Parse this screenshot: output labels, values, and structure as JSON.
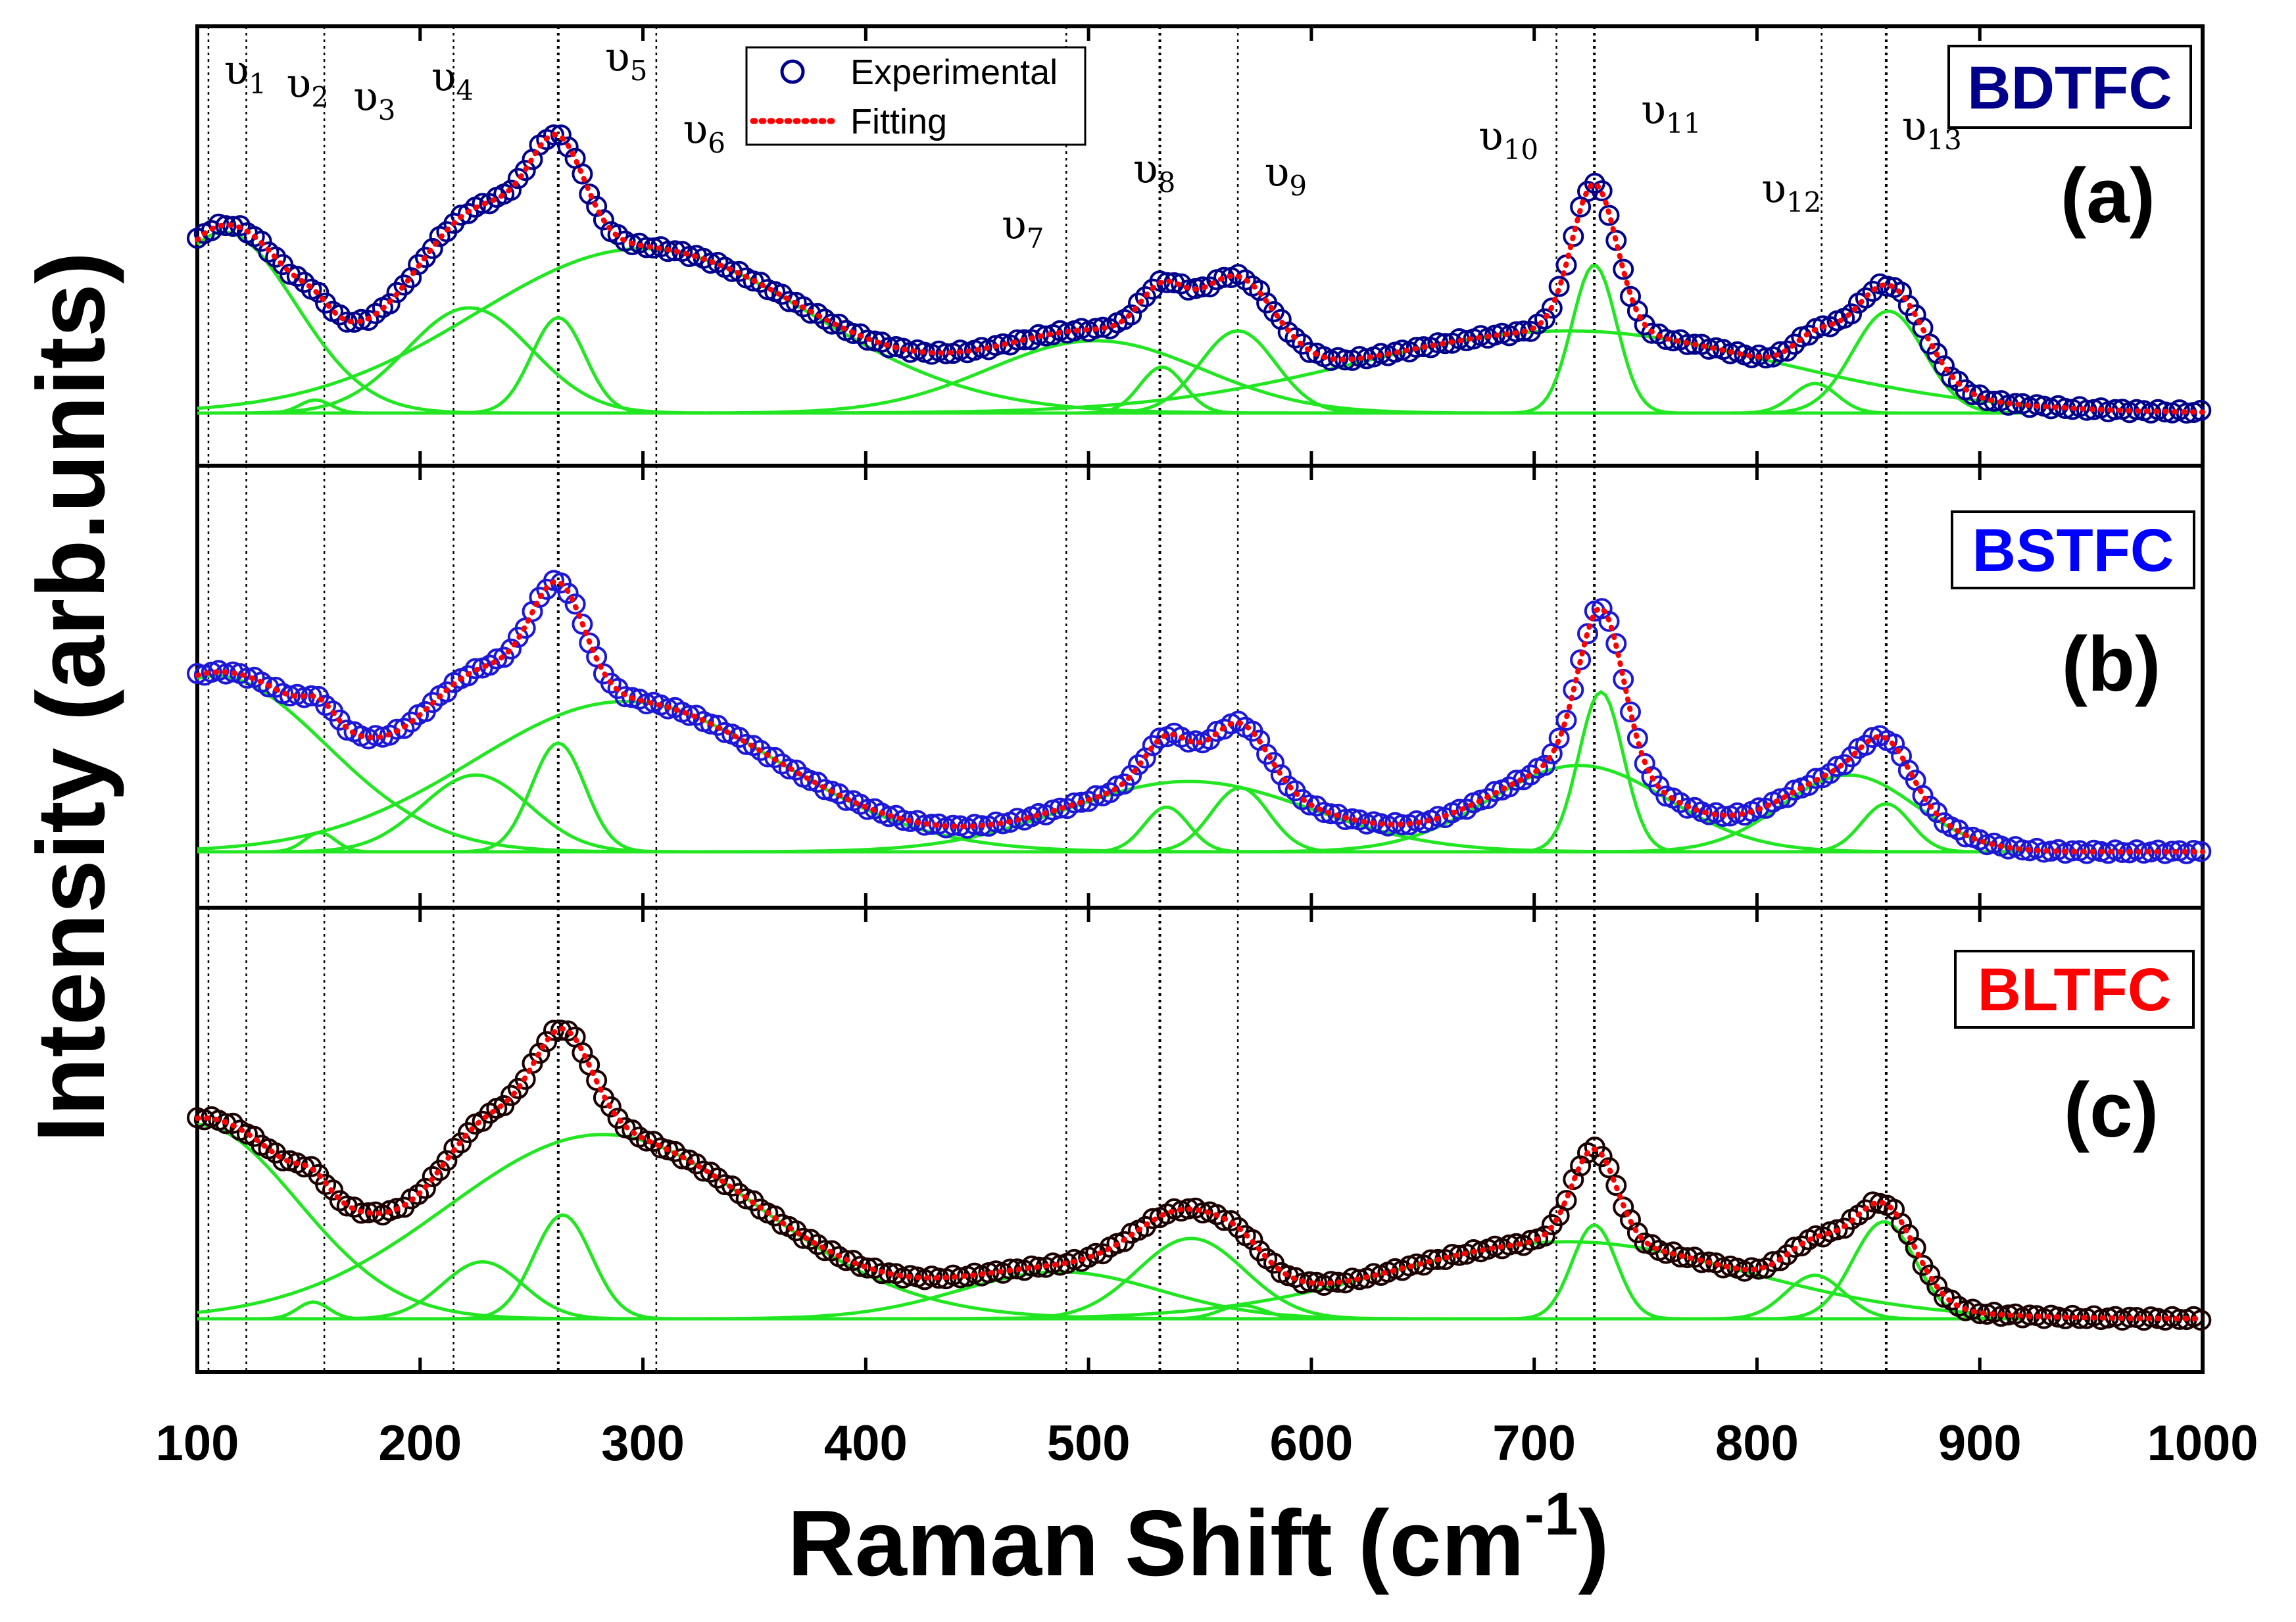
{
  "chart_data": {
    "type": "line",
    "xlabel": "Raman Shift (cm",
    "xlabel_sup": "-1",
    "xlabel_close": ")",
    "ylabel": "Intensity (arb.units)",
    "xlim": [
      100,
      1000
    ],
    "xticks": [
      "100",
      "200",
      "300",
      "400",
      "500",
      "600",
      "700",
      "800",
      "900",
      "1000"
    ],
    "legend": {
      "placement": "top-center of panel (a)",
      "entries": [
        {
          "label": "Experimental",
          "marker": "open-circle"
        },
        {
          "label": "Fitting",
          "marker": "dotted-line"
        }
      ]
    },
    "mode_lines": [
      105,
      122,
      157,
      215,
      262,
      306,
      490,
      532,
      567,
      710,
      727,
      829,
      858
    ],
    "panels": [
      {
        "sample": "BDTFC",
        "letter": "(a)",
        "sample_color": "#00008b",
        "marker_color": "#00008b",
        "ylim": [
          0,
          1.08
        ],
        "baseline_start": 0.0,
        "baseline_end": 0.0,
        "peaks": [
          {
            "center": 112,
            "amp": 0.55,
            "width": 32
          },
          {
            "center": 153,
            "amp": 0.04,
            "width": 7
          },
          {
            "center": 222,
            "amp": 0.32,
            "width": 28
          },
          {
            "center": 262,
            "amp": 0.29,
            "width": 12
          },
          {
            "center": 300,
            "amp": 0.5,
            "width": 75
          },
          {
            "center": 503,
            "amp": 0.22,
            "width": 48
          },
          {
            "center": 533,
            "amp": 0.14,
            "width": 10
          },
          {
            "center": 567,
            "amp": 0.25,
            "width": 17
          },
          {
            "center": 715,
            "amp": 0.25,
            "width": 95
          },
          {
            "center": 727,
            "amp": 0.45,
            "width": 10
          },
          {
            "center": 826,
            "amp": 0.09,
            "width": 10
          },
          {
            "center": 859,
            "amp": 0.31,
            "width": 16
          }
        ],
        "modes": [
          {
            "label": "υ",
            "sub": "1",
            "x": 112,
            "y": 1.0
          },
          {
            "label": "υ",
            "sub": "2",
            "x": 140,
            "y": 0.96
          },
          {
            "label": "υ",
            "sub": "3",
            "x": 170,
            "y": 0.92
          },
          {
            "label": "υ",
            "sub": "4",
            "x": 205,
            "y": 0.98
          },
          {
            "label": "υ",
            "sub": "5",
            "x": 283,
            "y": 1.04
          },
          {
            "label": "υ",
            "sub": "6",
            "x": 318,
            "y": 0.82
          },
          {
            "label": "υ",
            "sub": "7",
            "x": 461,
            "y": 0.53
          },
          {
            "label": "υ",
            "sub": "8",
            "x": 520,
            "y": 0.7
          },
          {
            "label": "υ",
            "sub": "9",
            "x": 579,
            "y": 0.69
          },
          {
            "label": "υ",
            "sub": "10",
            "x": 675,
            "y": 0.8
          },
          {
            "label": "υ",
            "sub": "11",
            "x": 748,
            "y": 0.88
          },
          {
            "label": "υ",
            "sub": "12",
            "x": 802,
            "y": 0.64
          },
          {
            "label": "υ",
            "sub": "13",
            "x": 865,
            "y": 0.83
          }
        ]
      },
      {
        "sample": "BSTFC",
        "letter": "(b)",
        "sample_color": "#0000ff",
        "marker_color": "#1d18d6",
        "ylim": [
          0,
          1.08
        ],
        "baseline_start": 0.0,
        "baseline_end": 0.0,
        "peaks": [
          {
            "center": 108,
            "amp": 0.55,
            "width": 50
          },
          {
            "center": 155,
            "amp": 0.06,
            "width": 7
          },
          {
            "center": 225,
            "amp": 0.24,
            "width": 24
          },
          {
            "center": 262,
            "amp": 0.34,
            "width": 12
          },
          {
            "center": 292,
            "amp": 0.47,
            "width": 68
          },
          {
            "center": 545,
            "amp": 0.22,
            "width": 55
          },
          {
            "center": 535,
            "amp": 0.14,
            "width": 10
          },
          {
            "center": 568,
            "amp": 0.2,
            "width": 13
          },
          {
            "center": 720,
            "amp": 0.27,
            "width": 40
          },
          {
            "center": 730,
            "amp": 0.5,
            "width": 10
          },
          {
            "center": 841,
            "amp": 0.24,
            "width": 30
          },
          {
            "center": 858,
            "amp": 0.15,
            "width": 11
          }
        ],
        "modes": []
      },
      {
        "sample": "BLTFC",
        "letter": "(c)",
        "sample_color": "#ff0000",
        "marker_color": "#1a0000",
        "ylim": [
          0,
          1.08
        ],
        "baseline_start": 0.0,
        "baseline_end": 0.0,
        "peaks": [
          {
            "center": 100,
            "amp": 0.58,
            "width": 45
          },
          {
            "center": 152,
            "amp": 0.05,
            "width": 7
          },
          {
            "center": 228,
            "amp": 0.17,
            "width": 18
          },
          {
            "center": 264,
            "amp": 0.31,
            "width": 13
          },
          {
            "center": 282,
            "amp": 0.55,
            "width": 70
          },
          {
            "center": 487,
            "amp": 0.14,
            "width": 45
          },
          {
            "center": 546,
            "amp": 0.24,
            "width": 24
          },
          {
            "center": 569,
            "amp": 0.04,
            "width": 10
          },
          {
            "center": 715,
            "amp": 0.23,
            "width": 80
          },
          {
            "center": 727,
            "amp": 0.28,
            "width": 10
          },
          {
            "center": 826,
            "amp": 0.13,
            "width": 13
          },
          {
            "center": 857,
            "amp": 0.29,
            "width": 14
          }
        ],
        "modes": []
      }
    ]
  }
}
